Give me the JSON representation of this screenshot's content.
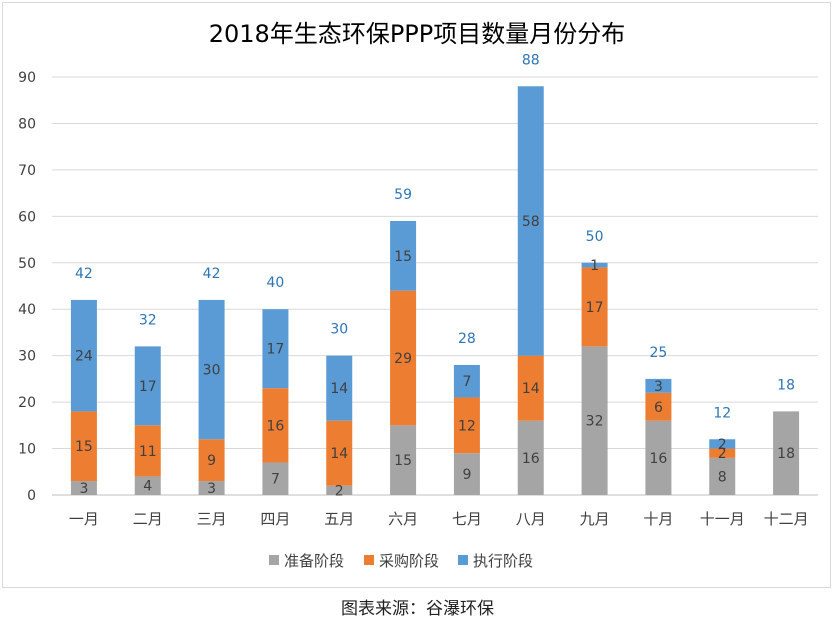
{
  "chart_data": {
    "type": "bar",
    "stacked": true,
    "title": "2018年生态环保PPP项目数量月份分布",
    "categories": [
      "一月",
      "二月",
      "三月",
      "四月",
      "五月",
      "六月",
      "七月",
      "八月",
      "九月",
      "十月",
      "十一月",
      "十二月"
    ],
    "series": [
      {
        "name": "准备阶段",
        "color": "#a5a5a5",
        "values": [
          3,
          4,
          3,
          7,
          2,
          15,
          9,
          16,
          32,
          16,
          8,
          18
        ]
      },
      {
        "name": "采购阶段",
        "color": "#ed7d31",
        "values": [
          15,
          11,
          9,
          16,
          14,
          29,
          12,
          14,
          17,
          6,
          2,
          0
        ]
      },
      {
        "name": "执行阶段",
        "color": "#5b9bd5",
        "values": [
          24,
          17,
          30,
          17,
          14,
          15,
          7,
          58,
          1,
          3,
          2,
          0
        ]
      }
    ],
    "totals": [
      42,
      32,
      42,
      40,
      30,
      59,
      28,
      88,
      50,
      25,
      12,
      18
    ],
    "ylim": [
      0,
      90
    ],
    "yticks": [
      "0",
      "10",
      "20",
      "30",
      "40",
      "50",
      "60",
      "70",
      "80",
      "90"
    ],
    "grid": true,
    "legend_position": "bottom",
    "total_label_color": "#2e75b6"
  },
  "source_note": "图表来源：谷瀑环保"
}
